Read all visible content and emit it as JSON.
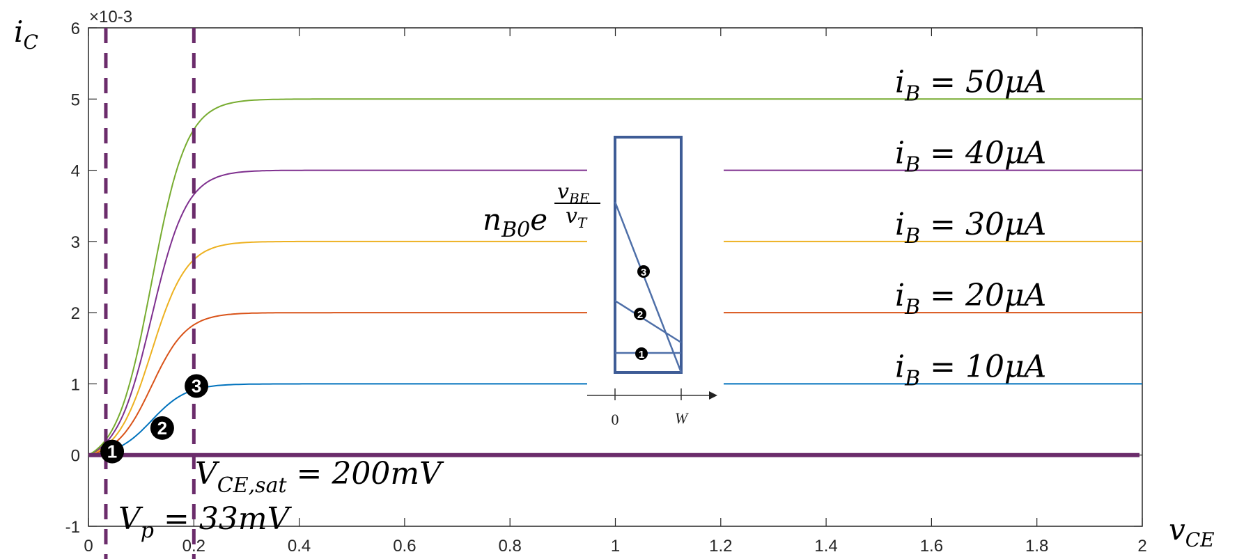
{
  "chart_data": {
    "type": "line",
    "title": "",
    "xlabel": "v_CE",
    "ylabel": "i_C",
    "scale_factor_label": "×10-3",
    "xlim": [
      0,
      2
    ],
    "ylim": [
      -1,
      6
    ],
    "x_ticks": [
      0,
      0.2,
      0.4,
      0.6,
      0.8,
      1,
      1.2,
      1.4,
      1.6,
      1.8,
      2
    ],
    "x_tick_labels": [
      "0",
      "0.2",
      "0.4",
      "0.6",
      "0.8",
      "1",
      "1.2",
      "1.4",
      "1.6",
      "1.8",
      "2"
    ],
    "y_ticks": [
      -1,
      0,
      1,
      2,
      3,
      4,
      5,
      6
    ],
    "y_tick_labels": [
      "-1",
      "0",
      "1",
      "2",
      "3",
      "4",
      "5",
      "6"
    ],
    "grid": false,
    "series": [
      {
        "name": "i_B = 10μA",
        "label_main": "i",
        "label_sub": "B",
        "label_rest": " = 10μA",
        "saturation_level": 1,
        "color": "#0072BD"
      },
      {
        "name": "i_B = 20μA",
        "label_main": "i",
        "label_sub": "B",
        "label_rest": " = 20μA",
        "saturation_level": 2,
        "color": "#D95319"
      },
      {
        "name": "i_B = 30μA",
        "label_main": "i",
        "label_sub": "B",
        "label_rest": " = 30μA",
        "saturation_level": 3,
        "color": "#EDB120"
      },
      {
        "name": "i_B = 40μA",
        "label_main": "i",
        "label_sub": "B",
        "label_rest": " = 40μA",
        "saturation_level": 4,
        "color": "#7E2F8E"
      },
      {
        "name": "i_B = 50μA",
        "label_main": "i",
        "label_sub": "B",
        "label_rest": " = 50μA",
        "saturation_level": 5,
        "color": "#77AC30"
      }
    ],
    "curve_model": {
      "midpoint": 0.12,
      "steepness": 30,
      "sample_step": 0.005
    },
    "zero_line": {
      "value": 0,
      "color": "#6B2C6B"
    },
    "vlines": [
      {
        "x": 0.033,
        "main": "V",
        "sub": "p",
        "rest": " = 33mV",
        "color": "#6B2C6B"
      },
      {
        "x": 0.2,
        "main": "V",
        "sub": "CE,sat",
        "rest": " = 200mV",
        "color": "#6B2C6B"
      }
    ],
    "markers": [
      {
        "label": "1",
        "x": 0.045,
        "y": 0.05
      },
      {
        "label": "2",
        "x": 0.14,
        "y": 0.38
      },
      {
        "label": "3",
        "x": 0.205,
        "y": 0.97
      }
    ],
    "inset": {
      "ylabel_main": "n",
      "ylabel_sub": "B0",
      "ylabel_base": "e",
      "exp_num_main": "v",
      "exp_num_sub": "BE",
      "exp_den_main": "v",
      "exp_den_sub": "T",
      "x_tick_labels": [
        "0",
        "W"
      ],
      "color": "#4E6FA8",
      "markers": [
        "1",
        "2",
        "3"
      ]
    }
  }
}
